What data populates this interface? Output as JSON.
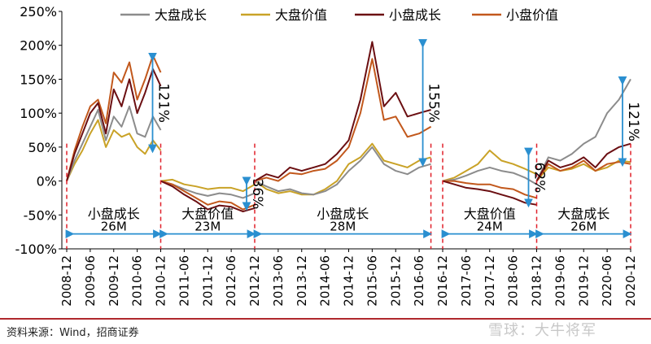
{
  "chart_data": {
    "type": "line",
    "title": "",
    "xlabel": "",
    "ylabel": "",
    "ylim": [
      -100,
      250
    ],
    "yticks": [
      -100,
      -50,
      0,
      50,
      100,
      150,
      200,
      250
    ],
    "ytick_labels": [
      "-100%",
      "-50%",
      "0%",
      "50%",
      "100%",
      "150%",
      "200%",
      "250%"
    ],
    "xticks": [
      "2008-12",
      "2009-06",
      "2009-12",
      "2010-06",
      "2010-12",
      "2011-06",
      "2011-12",
      "2012-06",
      "2012-12",
      "2013-06",
      "2013-12",
      "2014-06",
      "2014-12",
      "2015-06",
      "2015-12",
      "2016-06",
      "2016-12",
      "2017-06",
      "2017-12",
      "2018-06",
      "2018-12",
      "2019-06",
      "2019-12",
      "2020-06",
      "2020-12"
    ],
    "legend_placement": "top",
    "grid": false,
    "legend": [
      {
        "label": "大盘成长",
        "color": "#8c8c8c"
      },
      {
        "label": "大盘价值",
        "color": "#c9a227"
      },
      {
        "label": "小盘成长",
        "color": "#6b0f12"
      },
      {
        "label": "小盘价值",
        "color": "#c2581c"
      }
    ],
    "periods": [
      {
        "start": "2008-12",
        "end": "2010-12",
        "label": "小盘成长",
        "duration": "26M",
        "spread": "121%",
        "x": [
          "2008-12",
          "2009-02",
          "2009-04",
          "2009-06",
          "2009-08",
          "2009-10",
          "2009-12",
          "2010-02",
          "2010-04",
          "2010-06",
          "2010-08",
          "2010-10",
          "2010-12"
        ],
        "series": [
          {
            "name": "大盘成长",
            "values": [
              0,
              30,
              55,
              80,
              105,
              60,
              95,
              80,
              110,
              70,
              65,
              95,
              75
            ]
          },
          {
            "name": "大盘价值",
            "values": [
              0,
              25,
              45,
              70,
              90,
              50,
              75,
              65,
              70,
              50,
              40,
              60,
              45
            ]
          },
          {
            "name": "小盘成长",
            "values": [
              0,
              40,
              70,
              100,
              115,
              70,
              135,
              110,
              150,
              100,
              130,
              165,
              140
            ]
          },
          {
            "name": "小盘价值",
            "values": [
              0,
              45,
              80,
              110,
              120,
              85,
              160,
              145,
              175,
              120,
              150,
              185,
              160
            ]
          }
        ]
      },
      {
        "start": "2010-12",
        "end": "2012-12",
        "label": "大盘价值",
        "duration": "23M",
        "spread": "36%",
        "x": [
          "2010-12",
          "2011-03",
          "2011-06",
          "2011-09",
          "2011-12",
          "2012-03",
          "2012-06",
          "2012-09",
          "2012-12"
        ],
        "series": [
          {
            "name": "大盘成长",
            "values": [
              0,
              -5,
              -12,
              -18,
              -22,
              -18,
              -20,
              -25,
              -18
            ]
          },
          {
            "name": "大盘价值",
            "values": [
              0,
              2,
              -5,
              -8,
              -12,
              -10,
              -10,
              -15,
              -5
            ]
          },
          {
            "name": "小盘成长",
            "values": [
              0,
              -8,
              -20,
              -30,
              -42,
              -36,
              -38,
              -45,
              -40
            ]
          },
          {
            "name": "小盘价值",
            "values": [
              0,
              -5,
              -15,
              -25,
              -35,
              -30,
              -32,
              -42,
              -35
            ]
          }
        ]
      },
      {
        "start": "2012-12",
        "end": "2016-09",
        "label": "小盘成长",
        "duration": "28M",
        "spread": "155%",
        "x": [
          "2012-12",
          "2013-03",
          "2013-06",
          "2013-09",
          "2013-12",
          "2014-03",
          "2014-06",
          "2014-09",
          "2014-12",
          "2015-03",
          "2015-06",
          "2015-09",
          "2015-12",
          "2016-03",
          "2016-06",
          "2016-09"
        ],
        "series": [
          {
            "name": "大盘成长",
            "values": [
              0,
              -8,
              -15,
              -12,
              -18,
              -20,
              -15,
              -5,
              15,
              30,
              50,
              25,
              15,
              10,
              20,
              25
            ]
          },
          {
            "name": "大盘价值",
            "values": [
              0,
              -12,
              -18,
              -15,
              -20,
              -20,
              -12,
              0,
              25,
              35,
              55,
              30,
              25,
              20,
              30,
              35
            ]
          },
          {
            "name": "小盘成长",
            "values": [
              0,
              10,
              5,
              20,
              15,
              20,
              25,
              40,
              60,
              120,
              205,
              110,
              130,
              95,
              100,
              105
            ]
          },
          {
            "name": "小盘价值",
            "values": [
              0,
              5,
              0,
              12,
              10,
              15,
              18,
              30,
              50,
              100,
              180,
              90,
              95,
              65,
              70,
              80
            ]
          }
        ]
      },
      {
        "start": "2016-12",
        "end": "2018-12",
        "label": "大盘价值",
        "duration": "24M",
        "spread": "62%",
        "x": [
          "2016-12",
          "2017-03",
          "2017-06",
          "2017-09",
          "2017-12",
          "2018-03",
          "2018-06",
          "2018-09",
          "2018-12"
        ],
        "series": [
          {
            "name": "大盘成长",
            "values": [
              0,
              2,
              8,
              15,
              20,
              15,
              12,
              5,
              -5
            ]
          },
          {
            "name": "大盘价值",
            "values": [
              0,
              5,
              15,
              25,
              45,
              30,
              25,
              18,
              10
            ]
          },
          {
            "name": "小盘成长",
            "values": [
              0,
              -5,
              -10,
              -12,
              -15,
              -20,
              -25,
              -32,
              -35
            ]
          },
          {
            "name": "小盘价值",
            "values": [
              0,
              0,
              -3,
              -5,
              -5,
              -10,
              -12,
              -20,
              -25
            ]
          }
        ]
      },
      {
        "start": "2018-12",
        "end": "2020-12",
        "label": "大盘成长",
        "duration": "26M",
        "spread": "121%",
        "x": [
          "2018-12",
          "2019-03",
          "2019-06",
          "2019-09",
          "2019-12",
          "2020-03",
          "2020-06",
          "2020-09",
          "2020-12"
        ],
        "series": [
          {
            "name": "大盘成长",
            "values": [
              0,
              35,
              30,
              40,
              55,
              65,
              100,
              120,
              150
            ]
          },
          {
            "name": "大盘价值",
            "values": [
              0,
              20,
              15,
              18,
              25,
              15,
              20,
              30,
              28
            ]
          },
          {
            "name": "小盘成长",
            "values": [
              0,
              30,
              20,
              25,
              35,
              20,
              40,
              50,
              55
            ]
          },
          {
            "name": "小盘价值",
            "values": [
              0,
              25,
              15,
              20,
              30,
              15,
              25,
              28,
              25
            ]
          }
        ]
      }
    ]
  },
  "footer": {
    "source": "资料来源：Wind，招商证券",
    "watermark": "雪球：大牛将军"
  }
}
